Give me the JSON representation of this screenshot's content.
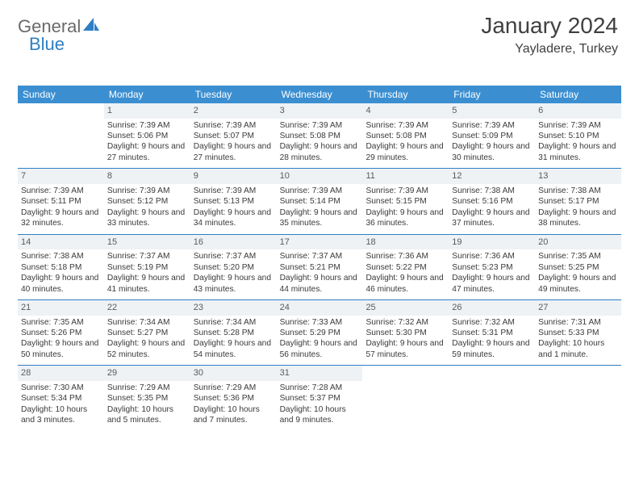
{
  "brand": {
    "part1": "General",
    "part2": "Blue"
  },
  "title": "January 2024",
  "location": "Yayladere, Turkey",
  "colors": {
    "header_bg": "#3b8fd1",
    "header_text": "#ffffff",
    "daynum_bg": "#eef2f5",
    "rule": "#2f7fc4",
    "body_text": "#3a3a3a",
    "title_text": "#404040"
  },
  "day_names": [
    "Sunday",
    "Monday",
    "Tuesday",
    "Wednesday",
    "Thursday",
    "Friday",
    "Saturday"
  ],
  "start_offset": 1,
  "days": [
    {
      "n": 1,
      "sunrise": "7:39 AM",
      "sunset": "5:06 PM",
      "daylight": "9 hours and 27 minutes."
    },
    {
      "n": 2,
      "sunrise": "7:39 AM",
      "sunset": "5:07 PM",
      "daylight": "9 hours and 27 minutes."
    },
    {
      "n": 3,
      "sunrise": "7:39 AM",
      "sunset": "5:08 PM",
      "daylight": "9 hours and 28 minutes."
    },
    {
      "n": 4,
      "sunrise": "7:39 AM",
      "sunset": "5:08 PM",
      "daylight": "9 hours and 29 minutes."
    },
    {
      "n": 5,
      "sunrise": "7:39 AM",
      "sunset": "5:09 PM",
      "daylight": "9 hours and 30 minutes."
    },
    {
      "n": 6,
      "sunrise": "7:39 AM",
      "sunset": "5:10 PM",
      "daylight": "9 hours and 31 minutes."
    },
    {
      "n": 7,
      "sunrise": "7:39 AM",
      "sunset": "5:11 PM",
      "daylight": "9 hours and 32 minutes."
    },
    {
      "n": 8,
      "sunrise": "7:39 AM",
      "sunset": "5:12 PM",
      "daylight": "9 hours and 33 minutes."
    },
    {
      "n": 9,
      "sunrise": "7:39 AM",
      "sunset": "5:13 PM",
      "daylight": "9 hours and 34 minutes."
    },
    {
      "n": 10,
      "sunrise": "7:39 AM",
      "sunset": "5:14 PM",
      "daylight": "9 hours and 35 minutes."
    },
    {
      "n": 11,
      "sunrise": "7:39 AM",
      "sunset": "5:15 PM",
      "daylight": "9 hours and 36 minutes."
    },
    {
      "n": 12,
      "sunrise": "7:38 AM",
      "sunset": "5:16 PM",
      "daylight": "9 hours and 37 minutes."
    },
    {
      "n": 13,
      "sunrise": "7:38 AM",
      "sunset": "5:17 PM",
      "daylight": "9 hours and 38 minutes."
    },
    {
      "n": 14,
      "sunrise": "7:38 AM",
      "sunset": "5:18 PM",
      "daylight": "9 hours and 40 minutes."
    },
    {
      "n": 15,
      "sunrise": "7:37 AM",
      "sunset": "5:19 PM",
      "daylight": "9 hours and 41 minutes."
    },
    {
      "n": 16,
      "sunrise": "7:37 AM",
      "sunset": "5:20 PM",
      "daylight": "9 hours and 43 minutes."
    },
    {
      "n": 17,
      "sunrise": "7:37 AM",
      "sunset": "5:21 PM",
      "daylight": "9 hours and 44 minutes."
    },
    {
      "n": 18,
      "sunrise": "7:36 AM",
      "sunset": "5:22 PM",
      "daylight": "9 hours and 46 minutes."
    },
    {
      "n": 19,
      "sunrise": "7:36 AM",
      "sunset": "5:23 PM",
      "daylight": "9 hours and 47 minutes."
    },
    {
      "n": 20,
      "sunrise": "7:35 AM",
      "sunset": "5:25 PM",
      "daylight": "9 hours and 49 minutes."
    },
    {
      "n": 21,
      "sunrise": "7:35 AM",
      "sunset": "5:26 PM",
      "daylight": "9 hours and 50 minutes."
    },
    {
      "n": 22,
      "sunrise": "7:34 AM",
      "sunset": "5:27 PM",
      "daylight": "9 hours and 52 minutes."
    },
    {
      "n": 23,
      "sunrise": "7:34 AM",
      "sunset": "5:28 PM",
      "daylight": "9 hours and 54 minutes."
    },
    {
      "n": 24,
      "sunrise": "7:33 AM",
      "sunset": "5:29 PM",
      "daylight": "9 hours and 56 minutes."
    },
    {
      "n": 25,
      "sunrise": "7:32 AM",
      "sunset": "5:30 PM",
      "daylight": "9 hours and 57 minutes."
    },
    {
      "n": 26,
      "sunrise": "7:32 AM",
      "sunset": "5:31 PM",
      "daylight": "9 hours and 59 minutes."
    },
    {
      "n": 27,
      "sunrise": "7:31 AM",
      "sunset": "5:33 PM",
      "daylight": "10 hours and 1 minute."
    },
    {
      "n": 28,
      "sunrise": "7:30 AM",
      "sunset": "5:34 PM",
      "daylight": "10 hours and 3 minutes."
    },
    {
      "n": 29,
      "sunrise": "7:29 AM",
      "sunset": "5:35 PM",
      "daylight": "10 hours and 5 minutes."
    },
    {
      "n": 30,
      "sunrise": "7:29 AM",
      "sunset": "5:36 PM",
      "daylight": "10 hours and 7 minutes."
    },
    {
      "n": 31,
      "sunrise": "7:28 AM",
      "sunset": "5:37 PM",
      "daylight": "10 hours and 9 minutes."
    }
  ],
  "labels": {
    "sunrise": "Sunrise:",
    "sunset": "Sunset:",
    "daylight": "Daylight:"
  }
}
